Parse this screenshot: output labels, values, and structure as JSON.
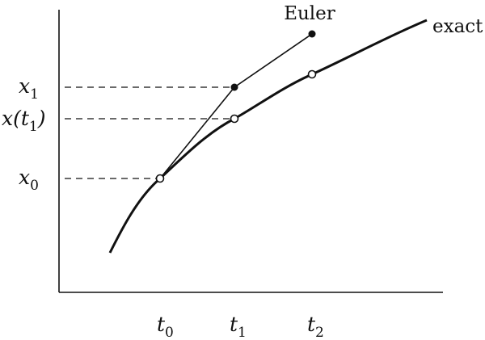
{
  "labels": {
    "euler": "Euler",
    "exact": "exact"
  },
  "y_labels": {
    "x1": {
      "base": "x",
      "sub": "1"
    },
    "xt1": {
      "pre": "x(",
      "base": "t",
      "sub": "1",
      "post": ")"
    },
    "x0": {
      "base": "x",
      "sub": "0"
    }
  },
  "t_labels": [
    {
      "base": "t",
      "sub": "0"
    },
    {
      "base": "t",
      "sub": "1"
    },
    {
      "base": "t",
      "sub": "2"
    }
  ],
  "colors": {
    "ink": "#111111",
    "background": "#ffffff"
  }
}
